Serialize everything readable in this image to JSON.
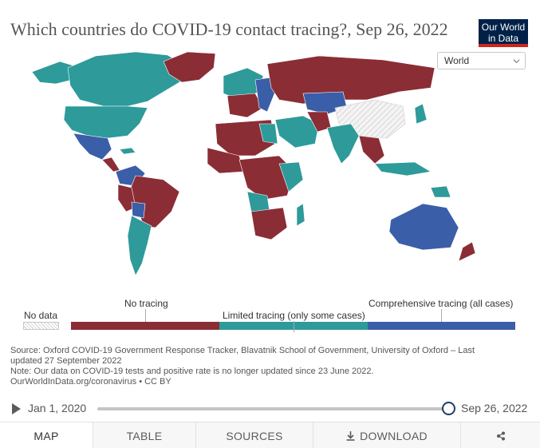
{
  "header": {
    "title": "Which countries do COVID-19 contact tracing?, Sep 26, 2022",
    "logo_line1": "Our World",
    "logo_line2": "in Data"
  },
  "region_select": {
    "value": "World",
    "icon": "chevron-down-icon"
  },
  "colors": {
    "no_tracing": "#8b2d35",
    "limited": "#2e9a9a",
    "comprehensive": "#3b5ea8",
    "no_data_hatch": "#d0d0d0",
    "ocean": "#ffffff"
  },
  "legend": {
    "no_data": "No data",
    "categories": [
      {
        "label": "No tracing",
        "color": "#8b2d35"
      },
      {
        "label": "Limited tracing (only some cases)",
        "color": "#2e9a9a"
      },
      {
        "label": "Comprehensive tracing (all cases)",
        "color": "#3b5ea8"
      }
    ]
  },
  "map_data": {
    "Canada": "Limited tracing",
    "United States": "Limited tracing",
    "Mexico": "Comprehensive tracing",
    "Greenland": "No tracing",
    "Brazil": "No tracing",
    "Argentina": "Limited tracing",
    "Peru": "No tracing",
    "Bolivia": "Comprehensive tracing",
    "Colombia": "Comprehensive tracing",
    "Russia": "No tracing",
    "China": "No data",
    "Kazakhstan": "Comprehensive tracing",
    "India": "Limited tracing",
    "Australia": "Comprehensive tracing",
    "New Zealand": "No tracing",
    "Japan": "Limited tracing",
    "Saudi Arabia": "Limited tracing",
    "Egypt": "Limited tracing",
    "Libya": "No tracing",
    "Algeria": "No tracing",
    "Angola": "Limited tracing",
    "Namibia": "No tracing",
    "South Africa": "No tracing",
    "Madagascar": "Limited tracing",
    "Papua New Guinea": "Limited tracing"
  },
  "source": {
    "line1": "Source: Oxford COVID-19 Government Response Tracker, Blavatnik School of Government, University of Oxford – Last",
    "line2": "updated 27 September 2022",
    "line3": "Note: Our data on COVID-19 tests and positive rate is no longer updated since 23 June 2022.",
    "line4": "OurWorldInData.org/coronavirus • CC BY"
  },
  "timeline": {
    "start": "Jan 1, 2020",
    "end": "Sep 26, 2022",
    "position_fraction": 1.0
  },
  "tabs": [
    {
      "label": "MAP",
      "icon": ""
    },
    {
      "label": "TABLE",
      "icon": ""
    },
    {
      "label": "SOURCES",
      "icon": ""
    },
    {
      "label": "DOWNLOAD",
      "icon": "download-icon"
    },
    {
      "label": "",
      "icon": "share-icon"
    }
  ]
}
